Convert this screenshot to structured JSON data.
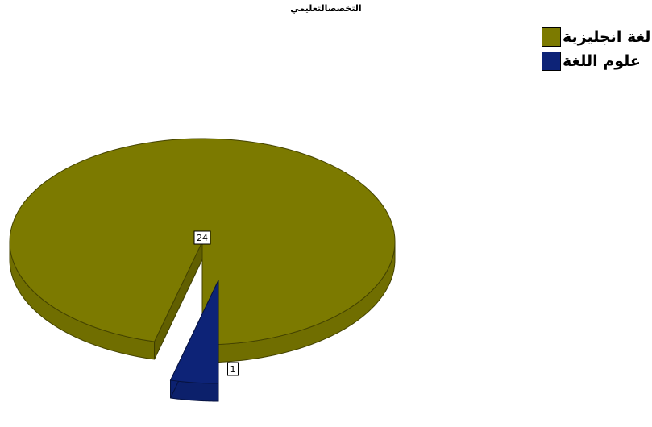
{
  "chart_data": {
    "type": "pie",
    "title": "التخصصالتعليمي",
    "slices": [
      {
        "label": "لغة انجليزية",
        "value": 24,
        "color": "#7c7a00"
      },
      {
        "label": "علوم اللغة",
        "value": 1,
        "color": "#0d2377"
      }
    ],
    "legend_position": "top-right",
    "data_labels": true
  }
}
